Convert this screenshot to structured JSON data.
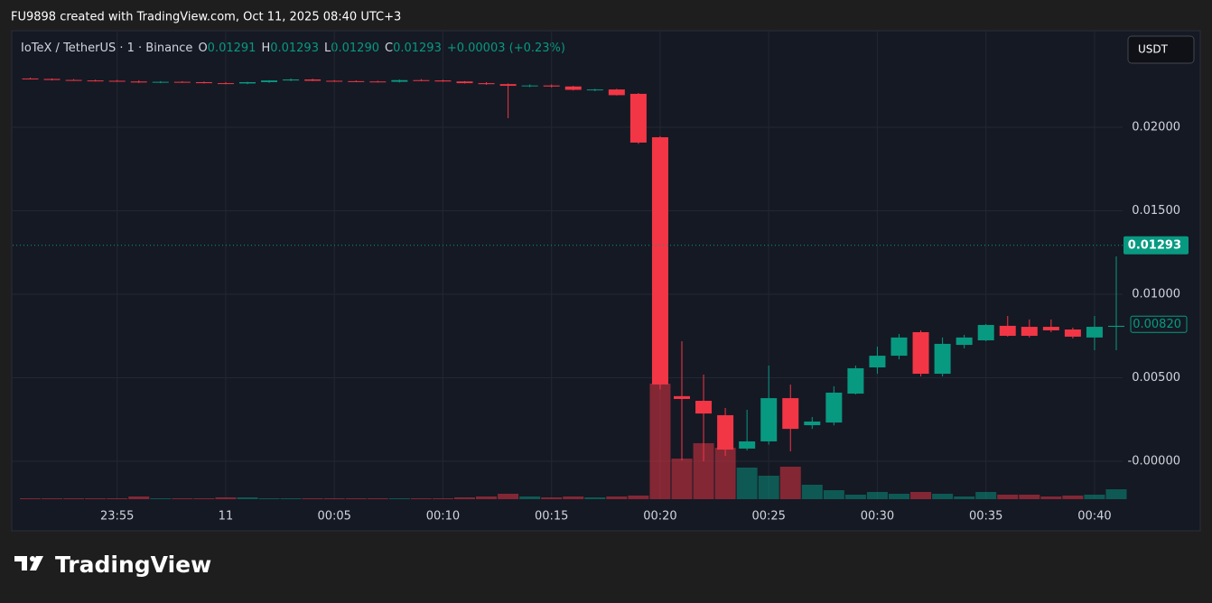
{
  "watermark": "FU9898 created with TradingView.com, Oct 11, 2025 08:40 UTC+3",
  "brand": "TradingView",
  "chart_data": {
    "type": "candlestick",
    "title": "IoTeX / TetherUS · 1 · Binance",
    "ohlc": [
      {
        "key": "O",
        "value": 0.01291
      },
      {
        "key": "H",
        "value": 0.01293
      },
      {
        "key": "L",
        "value": 0.0129,
        "label": "0.01290"
      },
      {
        "key": "C",
        "value": 0.01293
      }
    ],
    "change": "+0.00003 (+0.23%)",
    "currency": "USDT",
    "categories": [
      null,
      null,
      null,
      null,
      "23:55",
      null,
      null,
      null,
      null,
      "11",
      null,
      null,
      null,
      null,
      "00:05",
      null,
      null,
      null,
      null,
      "00:10",
      null,
      null,
      null,
      null,
      "00:15",
      null,
      null,
      null,
      null,
      "00:20",
      null,
      null,
      null,
      null,
      "00:25",
      null,
      null,
      null,
      null,
      "00:30",
      null,
      null,
      null,
      null,
      "00:35",
      null,
      null,
      null,
      null,
      "00:40",
      null
    ],
    "open": [
      0.02292,
      0.02289,
      0.02283,
      0.0228,
      0.02278,
      0.02274,
      0.02268,
      0.02272,
      0.0227,
      0.02264,
      0.02262,
      0.0227,
      0.0228,
      0.02286,
      0.02278,
      0.02276,
      0.02274,
      0.02272,
      0.02282,
      0.0228,
      0.02274,
      0.02264,
      0.02258,
      0.02248,
      0.0225,
      0.02244,
      0.02224,
      0.02226,
      0.022,
      0.0194,
      0.0039,
      0.00362,
      0.00276,
      0.00076,
      0.00119,
      0.00378,
      0.00216,
      0.00232,
      0.00405,
      0.00562,
      0.00632,
      0.00773,
      0.00524,
      0.00697,
      0.00724,
      0.00811,
      0.00805,
      0.00805,
      0.00789,
      0.00741,
      0.00805
    ],
    "high": [
      0.02297,
      0.02292,
      0.02288,
      0.02285,
      0.02283,
      0.0228,
      0.02276,
      0.02276,
      0.02274,
      0.0227,
      0.02272,
      0.02282,
      0.02292,
      0.0229,
      0.02282,
      0.0228,
      0.02278,
      0.02286,
      0.02288,
      0.02284,
      0.02276,
      0.0227,
      0.02262,
      0.02256,
      0.02256,
      0.02248,
      0.0223,
      0.0223,
      0.02205,
      0.01946,
      0.00719,
      0.00519,
      0.00319,
      0.00308,
      0.00573,
      0.00459,
      0.00265,
      0.00449,
      0.00573,
      0.00686,
      0.00762,
      0.00784,
      0.00741,
      0.00757,
      0.00822,
      0.0087,
      0.00849,
      0.00849,
      0.008,
      0.0087,
      0.01227
    ],
    "low": [
      0.02287,
      0.0228,
      0.02278,
      0.02274,
      0.02272,
      0.02265,
      0.02264,
      0.02266,
      0.02262,
      0.02258,
      0.02258,
      0.02266,
      0.02276,
      0.02276,
      0.02272,
      0.0227,
      0.02268,
      0.02268,
      0.02276,
      0.02272,
      0.02262,
      0.02254,
      0.02054,
      0.0224,
      0.02238,
      0.0222,
      0.02216,
      0.0219,
      0.019,
      0.0043,
      5e-05,
      0,
      0.00032,
      0.00065,
      0.001,
      0.00059,
      0.00194,
      0.00215,
      0.004,
      0.00524,
      0.0061,
      0.00508,
      0.00508,
      0.00676,
      0.00719,
      0.00746,
      0.00741,
      0.00773,
      0.00735,
      0.00665,
      0.00665
    ],
    "close": [
      0.02289,
      0.02283,
      0.0228,
      0.02278,
      0.02274,
      0.02268,
      0.02272,
      0.0227,
      0.02264,
      0.02262,
      0.0227,
      0.0228,
      0.02286,
      0.02278,
      0.02276,
      0.02274,
      0.02272,
      0.02282,
      0.0228,
      0.02274,
      0.02264,
      0.02258,
      0.02248,
      0.0225,
      0.02244,
      0.02224,
      0.02226,
      0.02192,
      0.01908,
      0.0046,
      0.00373,
      0.00286,
      0.0007,
      0.00119,
      0.00378,
      0.00194,
      0.00238,
      0.00411,
      0.00557,
      0.00632,
      0.00741,
      0.00524,
      0.00703,
      0.00741,
      0.00816,
      0.00751,
      0.00751,
      0.00784,
      0.00746,
      0.00805,
      0.00811
    ],
    "volume": [
      1,
      1,
      1,
      1,
      1,
      3,
      1,
      1,
      1,
      2,
      2,
      1,
      1,
      1,
      1,
      1,
      1,
      1,
      1,
      1,
      2,
      3,
      6,
      3,
      2,
      3,
      2,
      3,
      4,
      128,
      45,
      62,
      57,
      35,
      26,
      36,
      16,
      10,
      5,
      8,
      6,
      8,
      6,
      3,
      8,
      5,
      5,
      3,
      4,
      5,
      11
    ],
    "up_color": "#089981",
    "down_color": "#f23645",
    "ylim": [
      -0.00227,
      0.02578
    ],
    "yticks": [
      {
        "value": 0,
        "label": "-0.00000"
      },
      {
        "value": 0.005,
        "label": "0.00500"
      },
      {
        "value": 0.01,
        "label": "0.01000"
      },
      {
        "value": 0.015,
        "label": "0.01500"
      },
      {
        "value": 0.02,
        "label": "0.02000"
      }
    ],
    "price_line": {
      "value": 0.01293,
      "label": "0.01293"
    },
    "price_marker": {
      "value": 0.0082,
      "label": "0.00820"
    },
    "grid": true
  }
}
